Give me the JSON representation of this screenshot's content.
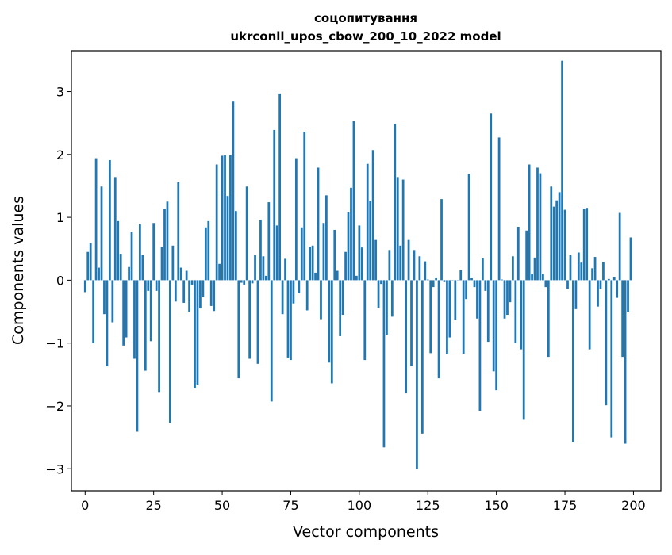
{
  "chart_data": {
    "type": "bar",
    "title": "соцопитування",
    "subtitle": "ukrconll_upos_cbow_200_10_2022 model",
    "xlabel": "Vector components",
    "ylabel": "Components values",
    "xlim": [
      -5,
      210
    ],
    "ylim": [
      -3.35,
      3.65
    ],
    "xticks": [
      0,
      25,
      50,
      75,
      100,
      125,
      150,
      175,
      200
    ],
    "yticks": [
      -3,
      -2,
      -1,
      0,
      1,
      2,
      3
    ],
    "bar_color": "#1f77b4",
    "values": [
      -0.19,
      0.45,
      0.59,
      -1.0,
      1.94,
      0.2,
      1.49,
      -0.54,
      -1.37,
      1.91,
      -0.67,
      1.64,
      0.94,
      0.42,
      -1.04,
      -0.91,
      0.21,
      0.77,
      -1.25,
      -2.41,
      0.89,
      0.4,
      -1.44,
      -0.17,
      -0.97,
      0.91,
      -0.17,
      -1.79,
      0.53,
      1.13,
      1.25,
      -2.27,
      0.55,
      -0.34,
      1.56,
      0.2,
      -0.36,
      0.15,
      -0.5,
      -0.07,
      -1.72,
      -1.66,
      -0.45,
      -0.27,
      0.84,
      0.94,
      -0.41,
      -0.49,
      1.84,
      0.26,
      1.98,
      1.99,
      1.34,
      1.99,
      2.84,
      1.1,
      -1.56,
      -0.04,
      -0.07,
      1.49,
      -1.25,
      -0.05,
      0.4,
      -1.33,
      0.96,
      0.38,
      0.07,
      1.24,
      -1.93,
      2.39,
      0.87,
      2.97,
      -0.54,
      0.34,
      -1.23,
      -1.27,
      -0.37,
      1.94,
      -0.21,
      0.84,
      2.36,
      -0.48,
      0.53,
      0.55,
      0.12,
      1.79,
      -0.62,
      0.91,
      1.35,
      -1.31,
      -1.64,
      0.8,
      0.15,
      -0.89,
      -0.55,
      0.45,
      1.08,
      1.47,
      2.53,
      0.07,
      0.87,
      0.52,
      -1.27,
      1.85,
      1.26,
      2.07,
      0.64,
      -0.44,
      -0.06,
      -2.66,
      -0.87,
      0.48,
      -0.58,
      2.49,
      1.64,
      0.55,
      1.6,
      -1.8,
      0.64,
      -1.37,
      0.48,
      -3.01,
      0.38,
      -2.44,
      0.3,
      0.01,
      -1.16,
      -0.11,
      0.03,
      -1.56,
      1.29,
      -0.03,
      -1.18,
      -0.91,
      0.0,
      -0.63,
      0.0,
      0.16,
      -1.17,
      -0.3,
      1.69,
      0.03,
      -0.11,
      -0.61,
      -2.08,
      0.35,
      -0.17,
      -0.98,
      2.65,
      -1.45,
      -1.75,
      2.27,
      0.01,
      -0.61,
      -0.55,
      -0.35,
      0.38,
      -1.0,
      0.85,
      -1.1,
      -2.22,
      0.79,
      1.84,
      0.1,
      0.36,
      1.79,
      1.7,
      0.1,
      -0.11,
      -1.22,
      1.49,
      1.17,
      1.27,
      1.4,
      3.49,
      1.12,
      -0.14,
      0.4,
      -2.58,
      -0.46,
      0.44,
      0.28,
      1.14,
      1.15,
      -1.1,
      0.19,
      0.37,
      -0.42,
      -0.14,
      0.29,
      -1.99,
      0.02,
      -2.5,
      0.05,
      -0.28,
      1.07,
      -1.22,
      -2.6,
      -0.5,
      0.68
    ]
  }
}
